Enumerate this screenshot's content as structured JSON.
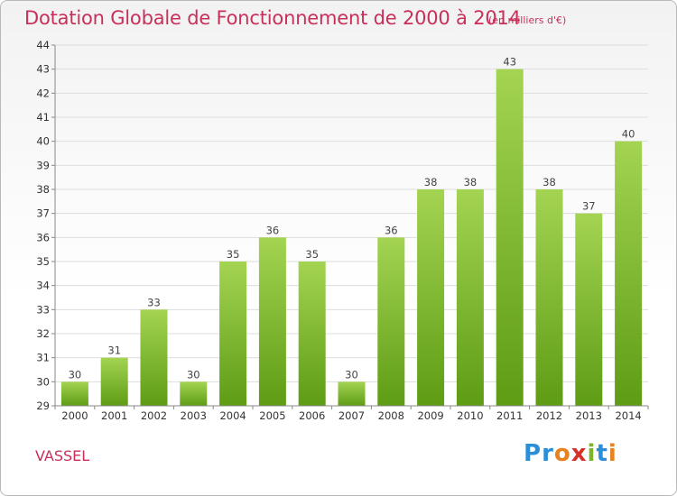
{
  "chart_data": {
    "type": "bar",
    "title": "Dotation Globale de Fonctionnement de 2000 à 2014",
    "subtitle": "(en milliers d'€)",
    "categories": [
      "2000",
      "2001",
      "2002",
      "2003",
      "2004",
      "2005",
      "2006",
      "2007",
      "2008",
      "2009",
      "2010",
      "2011",
      "2012",
      "2013",
      "2014"
    ],
    "values": [
      30,
      31,
      33,
      30,
      35,
      36,
      35,
      30,
      36,
      38,
      38,
      43,
      38,
      37,
      40
    ],
    "ylim": [
      29,
      44
    ],
    "yticks": [
      29,
      30,
      31,
      32,
      33,
      34,
      35,
      36,
      37,
      38,
      39,
      40,
      41,
      42,
      43,
      44
    ],
    "xlabel": "",
    "ylabel": "",
    "grid": true
  },
  "footer": {
    "commune": "VASSEL",
    "logo": {
      "p": "P",
      "r": "r",
      "o": "o",
      "x": "x",
      "i1": "i",
      "t": "t",
      "i2": "i"
    }
  },
  "colors": {
    "title": "#c8305a",
    "bar_top": "#9fd24c",
    "bar_bottom": "#5e9c14",
    "grid": "#dddddd"
  }
}
